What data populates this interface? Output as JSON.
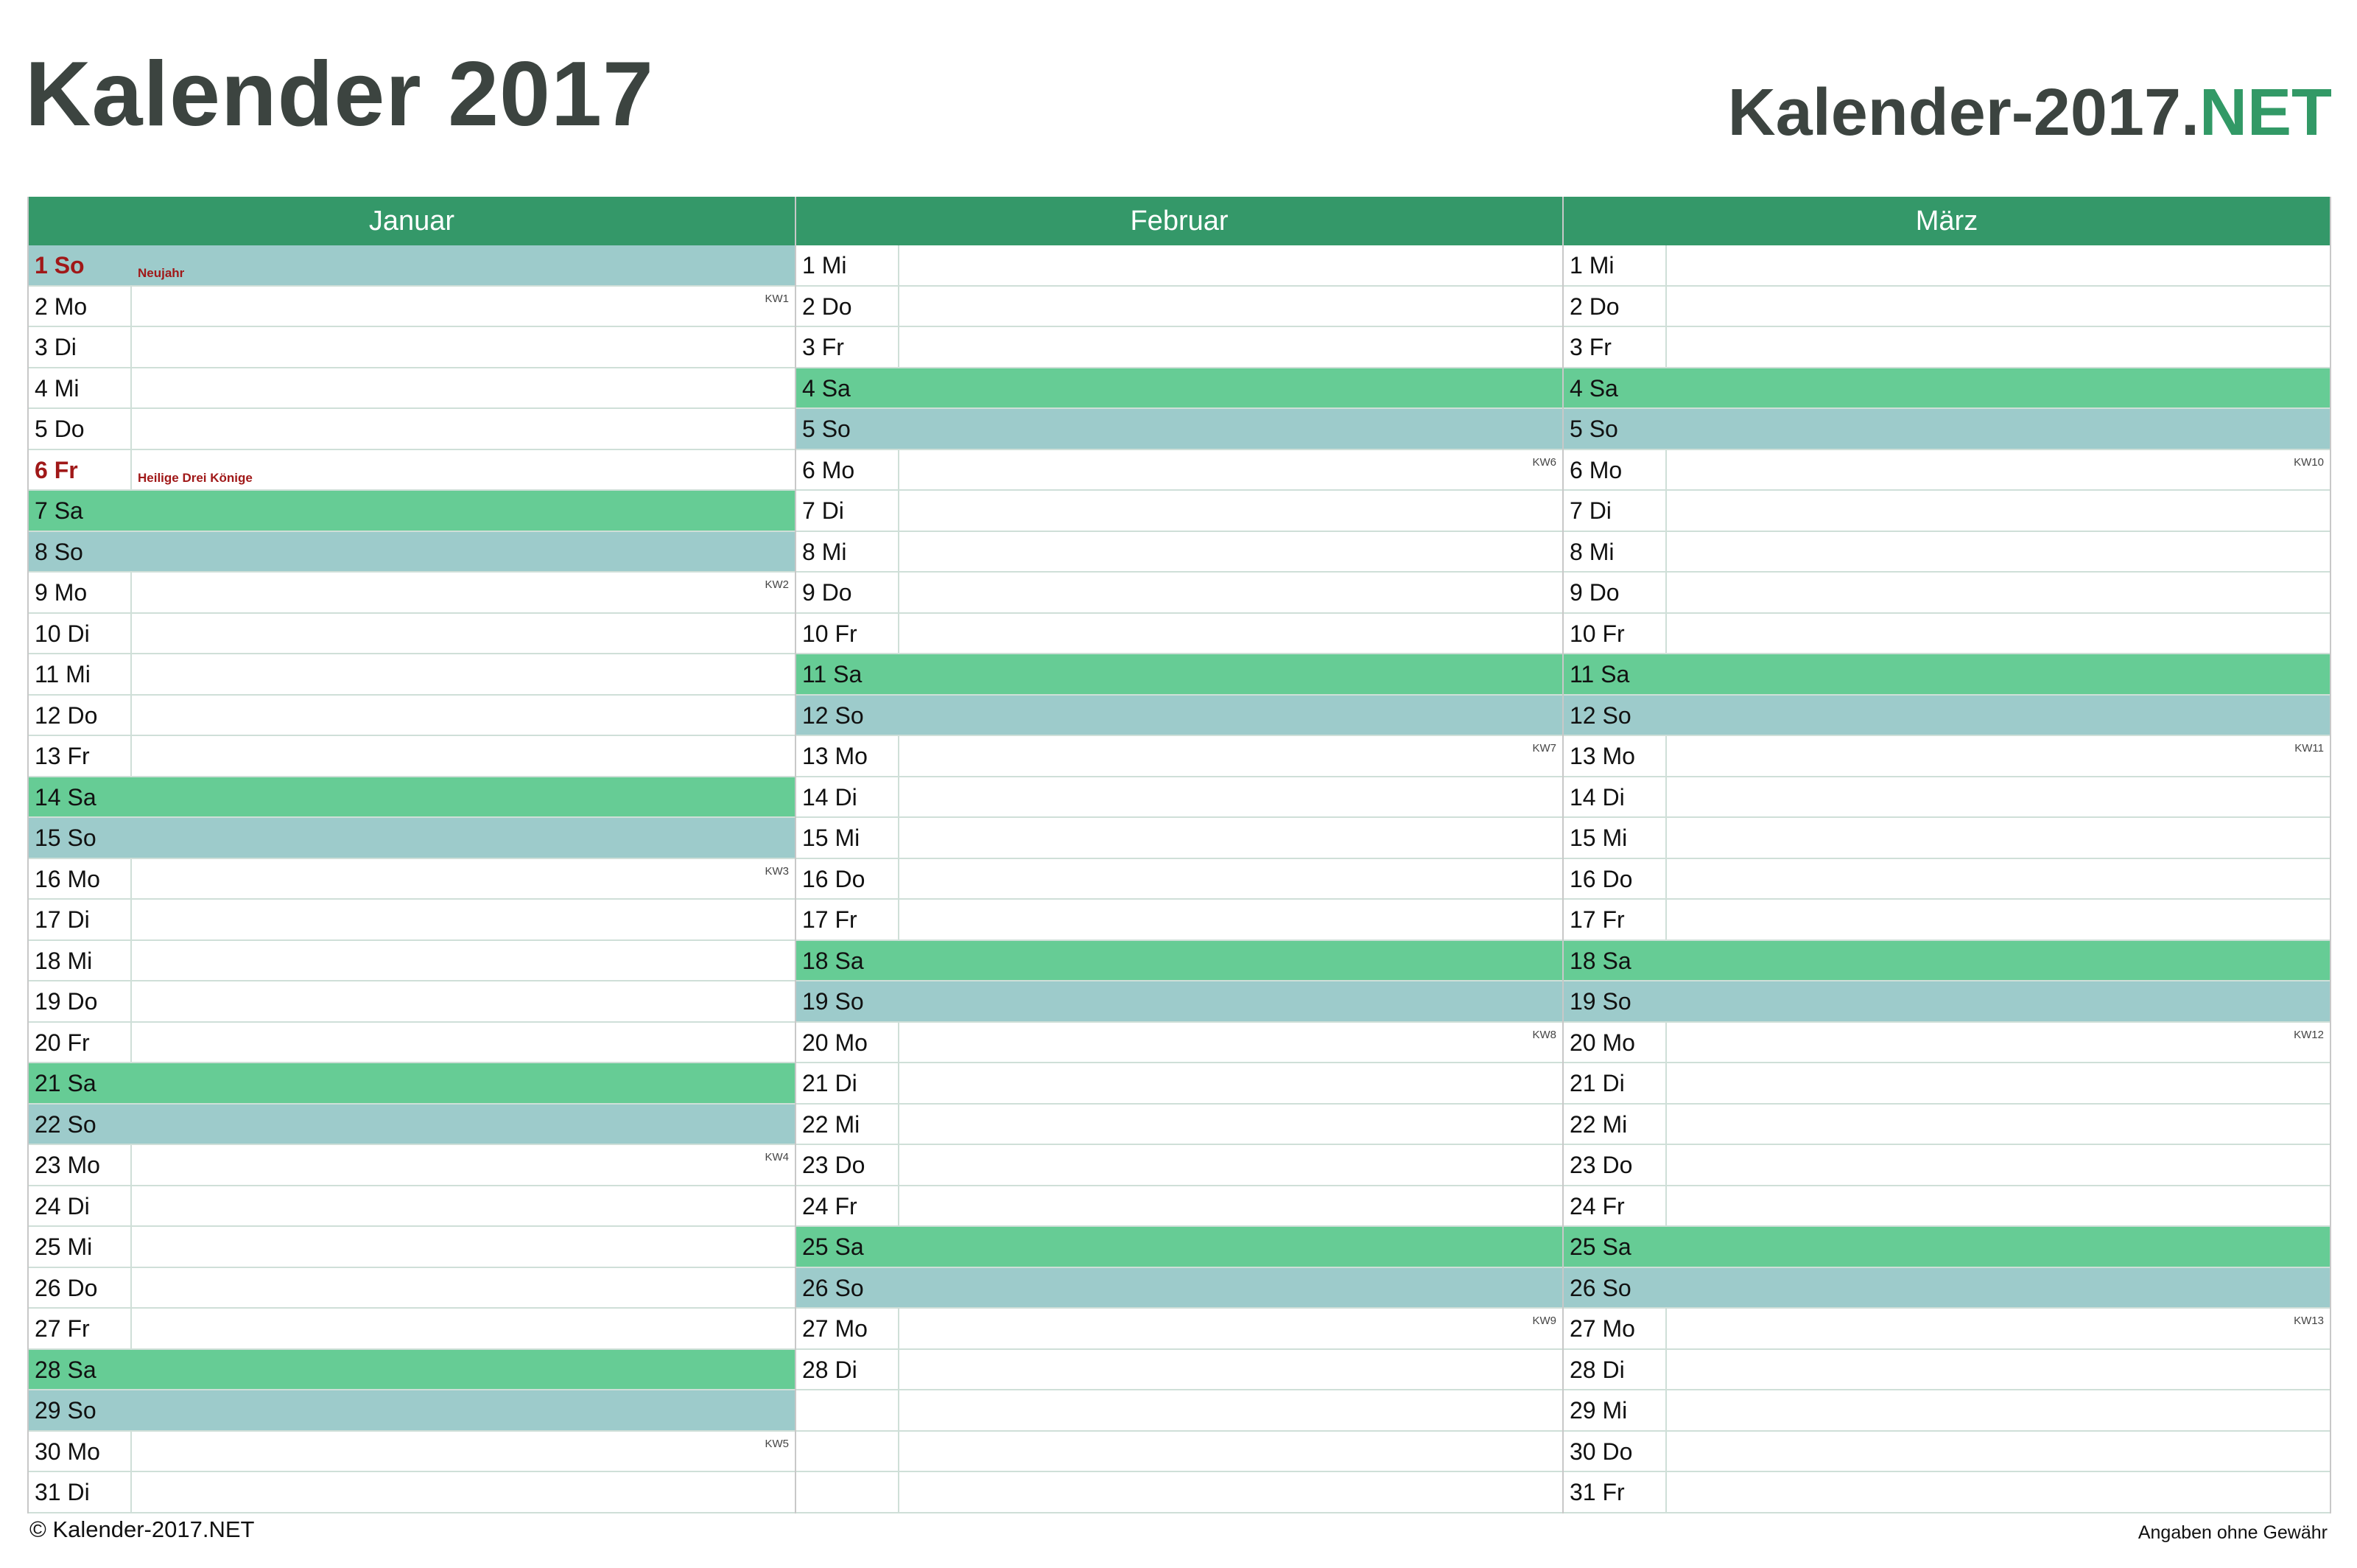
{
  "title": "Kalender 2017",
  "brand": {
    "name": "Kalender-2017.",
    "tld": "NET"
  },
  "colors": {
    "header": "#349869",
    "saturday": "#66cc95",
    "sunday": "#9dcbcb",
    "holiday_text": "#a01818",
    "title_text": "#3c4440",
    "brand_accent": "#329966"
  },
  "months": [
    {
      "name": "Januar",
      "days": [
        {
          "label": "1 So",
          "type": "sun",
          "holiday": true,
          "note": "Neujahr"
        },
        {
          "label": "2 Mo",
          "type": "wd",
          "kw": "KW1"
        },
        {
          "label": "3 Di",
          "type": "wd"
        },
        {
          "label": "4 Mi",
          "type": "wd"
        },
        {
          "label": "5 Do",
          "type": "wd"
        },
        {
          "label": "6 Fr",
          "type": "wd",
          "holiday": true,
          "note": "Heilige Drei Könige"
        },
        {
          "label": "7 Sa",
          "type": "sat"
        },
        {
          "label": "8 So",
          "type": "sun"
        },
        {
          "label": "9 Mo",
          "type": "wd",
          "kw": "KW2"
        },
        {
          "label": "10 Di",
          "type": "wd"
        },
        {
          "label": "11 Mi",
          "type": "wd"
        },
        {
          "label": "12 Do",
          "type": "wd"
        },
        {
          "label": "13 Fr",
          "type": "wd"
        },
        {
          "label": "14 Sa",
          "type": "sat"
        },
        {
          "label": "15 So",
          "type": "sun"
        },
        {
          "label": "16 Mo",
          "type": "wd",
          "kw": "KW3"
        },
        {
          "label": "17 Di",
          "type": "wd"
        },
        {
          "label": "18 Mi",
          "type": "wd"
        },
        {
          "label": "19 Do",
          "type": "wd"
        },
        {
          "label": "20 Fr",
          "type": "wd"
        },
        {
          "label": "21 Sa",
          "type": "sat"
        },
        {
          "label": "22 So",
          "type": "sun"
        },
        {
          "label": "23 Mo",
          "type": "wd",
          "kw": "KW4"
        },
        {
          "label": "24 Di",
          "type": "wd"
        },
        {
          "label": "25 Mi",
          "type": "wd"
        },
        {
          "label": "26 Do",
          "type": "wd"
        },
        {
          "label": "27 Fr",
          "type": "wd"
        },
        {
          "label": "28 Sa",
          "type": "sat"
        },
        {
          "label": "29 So",
          "type": "sun"
        },
        {
          "label": "30 Mo",
          "type": "wd",
          "kw": "KW5"
        },
        {
          "label": "31 Di",
          "type": "wd"
        }
      ]
    },
    {
      "name": "Februar",
      "days": [
        {
          "label": "1 Mi",
          "type": "wd"
        },
        {
          "label": "2 Do",
          "type": "wd"
        },
        {
          "label": "3 Fr",
          "type": "wd"
        },
        {
          "label": "4 Sa",
          "type": "sat"
        },
        {
          "label": "5 So",
          "type": "sun"
        },
        {
          "label": "6 Mo",
          "type": "wd",
          "kw": "KW6"
        },
        {
          "label": "7 Di",
          "type": "wd"
        },
        {
          "label": "8 Mi",
          "type": "wd"
        },
        {
          "label": "9 Do",
          "type": "wd"
        },
        {
          "label": "10 Fr",
          "type": "wd"
        },
        {
          "label": "11 Sa",
          "type": "sat"
        },
        {
          "label": "12 So",
          "type": "sun"
        },
        {
          "label": "13 Mo",
          "type": "wd",
          "kw": "KW7"
        },
        {
          "label": "14 Di",
          "type": "wd"
        },
        {
          "label": "15 Mi",
          "type": "wd"
        },
        {
          "label": "16 Do",
          "type": "wd"
        },
        {
          "label": "17 Fr",
          "type": "wd"
        },
        {
          "label": "18 Sa",
          "type": "sat"
        },
        {
          "label": "19 So",
          "type": "sun"
        },
        {
          "label": "20 Mo",
          "type": "wd",
          "kw": "KW8"
        },
        {
          "label": "21 Di",
          "type": "wd"
        },
        {
          "label": "22 Mi",
          "type": "wd"
        },
        {
          "label": "23 Do",
          "type": "wd"
        },
        {
          "label": "24 Fr",
          "type": "wd"
        },
        {
          "label": "25 Sa",
          "type": "sat"
        },
        {
          "label": "26 So",
          "type": "sun"
        },
        {
          "label": "27 Mo",
          "type": "wd",
          "kw": "KW9"
        },
        {
          "label": "28 Di",
          "type": "wd"
        },
        {
          "label": "",
          "type": "empty"
        },
        {
          "label": "",
          "type": "empty"
        },
        {
          "label": "",
          "type": "empty"
        }
      ]
    },
    {
      "name": "März",
      "days": [
        {
          "label": "1 Mi",
          "type": "wd"
        },
        {
          "label": "2 Do",
          "type": "wd"
        },
        {
          "label": "3 Fr",
          "type": "wd"
        },
        {
          "label": "4 Sa",
          "type": "sat"
        },
        {
          "label": "5 So",
          "type": "sun"
        },
        {
          "label": "6 Mo",
          "type": "wd",
          "kw": "KW10"
        },
        {
          "label": "7 Di",
          "type": "wd"
        },
        {
          "label": "8 Mi",
          "type": "wd"
        },
        {
          "label": "9 Do",
          "type": "wd"
        },
        {
          "label": "10 Fr",
          "type": "wd"
        },
        {
          "label": "11 Sa",
          "type": "sat"
        },
        {
          "label": "12 So",
          "type": "sun"
        },
        {
          "label": "13 Mo",
          "type": "wd",
          "kw": "KW11"
        },
        {
          "label": "14 Di",
          "type": "wd"
        },
        {
          "label": "15 Mi",
          "type": "wd"
        },
        {
          "label": "16 Do",
          "type": "wd"
        },
        {
          "label": "17 Fr",
          "type": "wd"
        },
        {
          "label": "18 Sa",
          "type": "sat"
        },
        {
          "label": "19 So",
          "type": "sun"
        },
        {
          "label": "20 Mo",
          "type": "wd",
          "kw": "KW12"
        },
        {
          "label": "21 Di",
          "type": "wd"
        },
        {
          "label": "22 Mi",
          "type": "wd"
        },
        {
          "label": "23 Do",
          "type": "wd"
        },
        {
          "label": "24 Fr",
          "type": "wd"
        },
        {
          "label": "25 Sa",
          "type": "sat"
        },
        {
          "label": "26 So",
          "type": "sun"
        },
        {
          "label": "27 Mo",
          "type": "wd",
          "kw": "KW13"
        },
        {
          "label": "28 Di",
          "type": "wd"
        },
        {
          "label": "29 Mi",
          "type": "wd"
        },
        {
          "label": "30 Do",
          "type": "wd"
        },
        {
          "label": "31 Fr",
          "type": "wd"
        }
      ]
    }
  ],
  "footer": {
    "copyright": "© Kalender-2017.NET",
    "disclaimer": "Angaben ohne Gewähr"
  }
}
